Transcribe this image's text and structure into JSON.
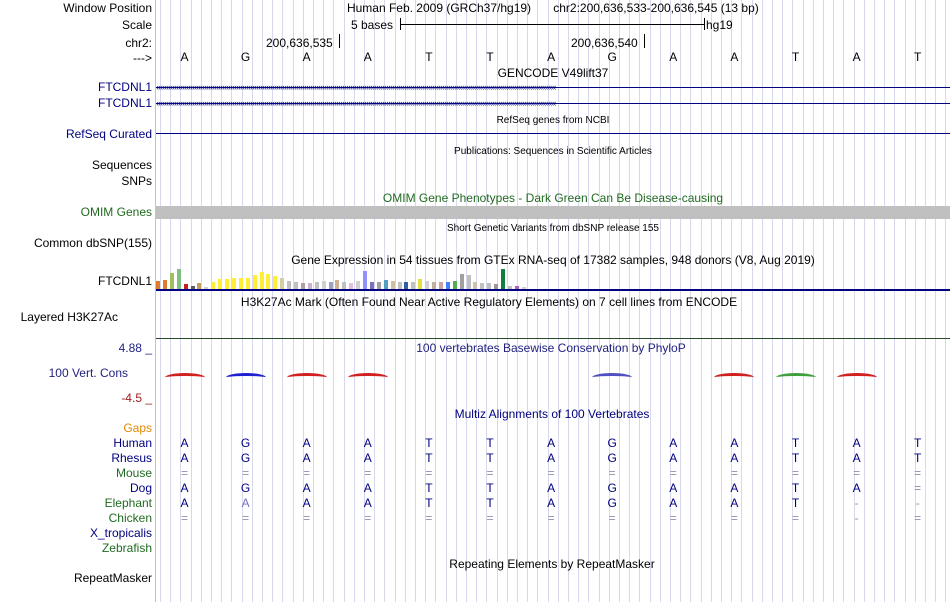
{
  "header": {
    "window_position_label": "Window Position",
    "scale_label": "Scale",
    "chr_label": "chr2:",
    "strand_label": "--->",
    "assembly_text": "Human Feb. 2009 (GRCh37/hg19)",
    "position_text": "chr2:200,636,533-200,636,545 (13 bp)",
    "scale_text": "5 bases",
    "db_text": "hg19",
    "coord_1": "200,636,535",
    "coord_2": "200,636,540"
  },
  "sequence": [
    "A",
    "G",
    "A",
    "A",
    "T",
    "T",
    "A",
    "G",
    "A",
    "A",
    "T",
    "A",
    "T"
  ],
  "tracks": {
    "gencode": {
      "title": "GENCODE V49lift37",
      "labels": [
        "FTCDNL1",
        "FTCDNL1"
      ]
    },
    "refseq": {
      "title": "RefSeq genes from NCBI",
      "label": "RefSeq Curated"
    },
    "publications": {
      "title": "Publications: Sequences in Scientific Articles",
      "label": "Sequences"
    },
    "snps_label": "SNPs",
    "omim": {
      "title": "OMIM Gene Phenotypes - Dark Green Can Be Disease-causing",
      "label": "OMIM Genes"
    },
    "dbsnp": {
      "title": "Short Genetic Variants from dbSNP release 155",
      "label": "Common dbSNP(155)"
    },
    "gtex": {
      "title": "Gene Expression in 54 tissues from GTEx RNA-seq of 17382 samples, 948 donors (V8, Aug 2019)",
      "label": "FTCDNL1",
      "bar_colors": [
        "#e07a2f",
        "#e07a2f",
        "#a0c060",
        "#7fbf7f",
        "#c02020",
        "#606060",
        "#c0a060",
        "#d0d0d0",
        "#ffee33",
        "#ffee33",
        "#ffee33",
        "#ffee33",
        "#ffee33",
        "#ffee33",
        "#ffee33",
        "#ffee33",
        "#ffee33",
        "#ffee33",
        "#d0d0a0",
        "#c0c0c0",
        "#c0c0c0",
        "#b0a0a0",
        "#d0b0d0",
        "#c0c0c0",
        "#d0d0d0",
        "#a0a0c0",
        "#d0b090",
        "#c0c0c0",
        "#e0c0e0",
        "#d0d0d0",
        "#9090ff",
        "#7a70c0",
        "#a0a0a0",
        "#50a0c0",
        "#d0c0a0",
        "#c0c0c0",
        "#3060a0",
        "#c0c0c0",
        "#e0e040",
        "#d0d0d0",
        "#c0b0a0",
        "#d0a0a0",
        "#4080ff",
        "#50b050",
        "#a0a0a0",
        "#c0c0c0",
        "#d0c0b0",
        "#c0c0c0",
        "#c0c0c0",
        "#a090a0",
        "#108040",
        "#c0c0c0",
        "#b060c0",
        "#d0d0d0"
      ],
      "bar_values": [
        8,
        9,
        16,
        20,
        5,
        3,
        6,
        2,
        7,
        10,
        10,
        11,
        11,
        11,
        14,
        17,
        15,
        13,
        11,
        8,
        7,
        6,
        6,
        7,
        8,
        7,
        9,
        7,
        6,
        8,
        18,
        7,
        7,
        9,
        8,
        7,
        7,
        7,
        10,
        8,
        7,
        7,
        7,
        8,
        15,
        14,
        7,
        6,
        6,
        5,
        20,
        3,
        3,
        2
      ]
    },
    "h3k27ac": {
      "title": "H3K27Ac Mark (Often Found Near Active Regulatory Elements) on 7 cell lines from ENCODE",
      "label": "Layered H3K27Ac"
    },
    "phylop": {
      "title": "100 vertebrates Basewise Conservation by PhyloP",
      "label": "100 Vert. Cons",
      "max": "4.88 _",
      "min": "-4.5 _"
    },
    "multiz": {
      "title": "Multiz Alignments of 100 Vertebrates",
      "gaps_label": "Gaps",
      "species": [
        {
          "name": "Human",
          "bases": [
            "A",
            "G",
            "A",
            "A",
            "T",
            "T",
            "A",
            "G",
            "A",
            "A",
            "T",
            "A",
            "T"
          ]
        },
        {
          "name": "Rhesus",
          "bases": [
            "A",
            "G",
            "A",
            "A",
            "T",
            "T",
            "A",
            "G",
            "A",
            "A",
            "T",
            "A",
            "T"
          ]
        },
        {
          "name": "Mouse",
          "bases": [
            "=",
            "=",
            "=",
            "=",
            "=",
            "=",
            "=",
            "=",
            "=",
            "=",
            "=",
            "=",
            "="
          ]
        },
        {
          "name": "Dog",
          "bases": [
            "A",
            "G",
            "A",
            "A",
            "T",
            "T",
            "A",
            "G",
            "A",
            "A",
            "T",
            "A",
            "="
          ]
        },
        {
          "name": "Elephant",
          "bases": [
            "A",
            "A",
            "A",
            "A",
            "T",
            "T",
            "A",
            "G",
            "A",
            "A",
            "T",
            "-",
            "-"
          ]
        },
        {
          "name": "Chicken",
          "bases": [
            "=",
            "=",
            "=",
            "=",
            "=",
            "=",
            "=",
            "=",
            "=",
            "=",
            "=",
            "-",
            "="
          ]
        },
        {
          "name": "X_tropicalis",
          "bases": []
        },
        {
          "name": "Zebrafish",
          "bases": []
        }
      ]
    },
    "repeatmasker": {
      "title": "Repeating Elements by RepeatMasker",
      "label": "RepeatMasker"
    }
  },
  "colors": {
    "label_blue": "#1f1f7f",
    "label_green": "#206a20",
    "gaps_orange": "#e08a00",
    "phylop_min": "#a02020"
  }
}
